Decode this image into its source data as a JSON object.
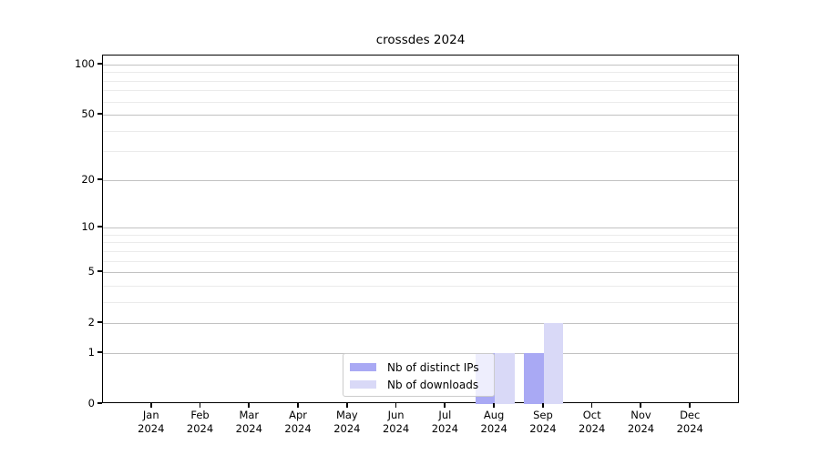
{
  "chart_data": {
    "type": "bar",
    "title": "crossdes 2024",
    "categories": [
      "Jan",
      "Feb",
      "Mar",
      "Apr",
      "May",
      "Jun",
      "Jul",
      "Aug",
      "Sep",
      "Oct",
      "Nov",
      "Dec"
    ],
    "year_label": "2024",
    "series": [
      {
        "name": "Nb of distinct IPs",
        "color": "#a9a9f4",
        "values": [
          0,
          0,
          0,
          0,
          0,
          0,
          0,
          1,
          1,
          0,
          0,
          0
        ]
      },
      {
        "name": "Nb of downloads",
        "color": "#d9d9f7",
        "values": [
          0,
          0,
          0,
          0,
          0,
          0,
          0,
          1,
          2,
          0,
          0,
          0
        ]
      }
    ],
    "y_scale": "log10(value+1)",
    "ylim": [
      0,
      113
    ],
    "y_major_ticks": [
      0,
      1,
      2,
      5,
      10,
      20,
      50,
      100
    ],
    "y_minor_gridlines": [
      3,
      4,
      6,
      7,
      8,
      9,
      30,
      40,
      60,
      70,
      80,
      90
    ],
    "grid": "horizontal",
    "legend_position": "lower center inside axes",
    "colors": {
      "grid_major": "#c2c2c2",
      "grid_minor": "#ebebeb",
      "spine": "#000000",
      "background": "#ffffff"
    }
  }
}
